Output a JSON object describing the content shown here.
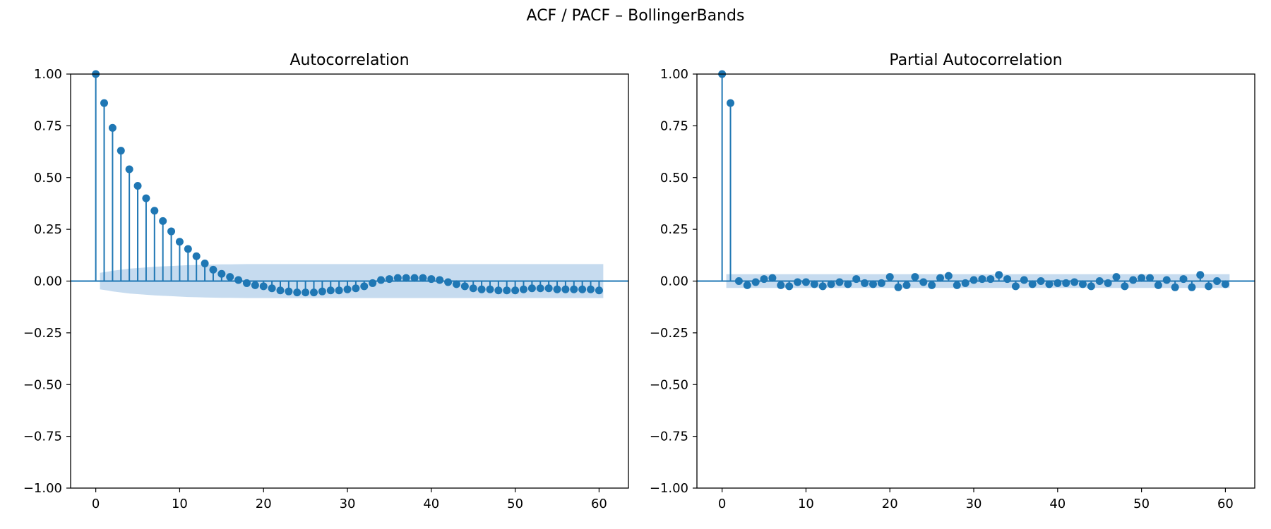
{
  "figure": {
    "suptitle": "ACF / PACF – BollingerBands"
  },
  "colors": {
    "series": "#1f77b4",
    "band": "#c6dbef",
    "axis": "#000000"
  },
  "chart_data": [
    {
      "type": "stem",
      "title": "Autocorrelation",
      "xlabel": "",
      "ylabel": "",
      "xlim": [
        -3,
        63.5
      ],
      "ylim": [
        -1,
        1
      ],
      "xticks": [
        0,
        10,
        20,
        30,
        40,
        50,
        60
      ],
      "xtick_labels": [
        "0",
        "10",
        "20",
        "30",
        "40",
        "50",
        "60"
      ],
      "yticks": [
        1.0,
        0.75,
        0.5,
        0.25,
        0.0,
        -0.25,
        -0.5,
        -0.75,
        -1.0
      ],
      "ytick_labels": [
        "1.00",
        "0.75",
        "0.50",
        "0.25",
        "0.00",
        "−0.25",
        "−0.50",
        "−0.75",
        "−1.00"
      ],
      "lags": [
        0,
        1,
        2,
        3,
        4,
        5,
        6,
        7,
        8,
        9,
        10,
        11,
        12,
        13,
        14,
        15,
        16,
        17,
        18,
        19,
        20,
        21,
        22,
        23,
        24,
        25,
        26,
        27,
        28,
        29,
        30,
        31,
        32,
        33,
        34,
        35,
        36,
        37,
        38,
        39,
        40,
        41,
        42,
        43,
        44,
        45,
        46,
        47,
        48,
        49,
        50,
        51,
        52,
        53,
        54,
        55,
        56,
        57,
        58,
        59,
        60
      ],
      "values": [
        1.0,
        0.86,
        0.74,
        0.63,
        0.54,
        0.46,
        0.4,
        0.34,
        0.29,
        0.24,
        0.19,
        0.155,
        0.12,
        0.085,
        0.055,
        0.035,
        0.02,
        0.005,
        -0.01,
        -0.02,
        -0.025,
        -0.035,
        -0.045,
        -0.05,
        -0.055,
        -0.055,
        -0.055,
        -0.05,
        -0.045,
        -0.045,
        -0.04,
        -0.035,
        -0.025,
        -0.01,
        0.005,
        0.01,
        0.015,
        0.015,
        0.015,
        0.015,
        0.01,
        0.005,
        -0.005,
        -0.015,
        -0.025,
        -0.035,
        -0.04,
        -0.04,
        -0.045,
        -0.045,
        -0.045,
        -0.04,
        -0.035,
        -0.035,
        -0.035,
        -0.04,
        -0.04,
        -0.04,
        -0.04,
        -0.04,
        -0.045
      ],
      "band_lags": [
        0.5,
        1,
        1.5,
        2,
        3,
        4,
        5,
        6,
        7,
        8,
        9,
        10,
        11,
        12,
        13,
        14,
        15,
        16,
        18,
        20,
        22,
        25,
        30,
        35,
        40,
        45,
        50,
        55,
        60,
        60.5
      ],
      "band_upper": [
        0.04,
        0.043,
        0.046,
        0.05,
        0.055,
        0.06,
        0.063,
        0.066,
        0.069,
        0.071,
        0.073,
        0.075,
        0.077,
        0.078,
        0.079,
        0.08,
        0.081,
        0.081,
        0.082,
        0.082,
        0.082,
        0.082,
        0.082,
        0.082,
        0.082,
        0.082,
        0.082,
        0.082,
        0.082,
        0.082
      ]
    },
    {
      "type": "stem",
      "title": "Partial Autocorrelation",
      "xlabel": "",
      "ylabel": "",
      "xlim": [
        -3,
        63.5
      ],
      "ylim": [
        -1,
        1
      ],
      "xticks": [
        0,
        10,
        20,
        30,
        40,
        50,
        60
      ],
      "xtick_labels": [
        "0",
        "10",
        "20",
        "30",
        "40",
        "50",
        "60"
      ],
      "yticks": [
        1.0,
        0.75,
        0.5,
        0.25,
        0.0,
        -0.25,
        -0.5,
        -0.75,
        -1.0
      ],
      "ytick_labels": [
        "1.00",
        "0.75",
        "0.50",
        "0.25",
        "0.00",
        "−0.25",
        "−0.50",
        "−0.75",
        "−1.00"
      ],
      "lags": [
        0,
        1,
        2,
        3,
        4,
        5,
        6,
        7,
        8,
        9,
        10,
        11,
        12,
        13,
        14,
        15,
        16,
        17,
        18,
        19,
        20,
        21,
        22,
        23,
        24,
        25,
        26,
        27,
        28,
        29,
        30,
        31,
        32,
        33,
        34,
        35,
        36,
        37,
        38,
        39,
        40,
        41,
        42,
        43,
        44,
        45,
        46,
        47,
        48,
        49,
        50,
        51,
        52,
        53,
        54,
        55,
        56,
        57,
        58,
        59,
        60
      ],
      "values": [
        1.0,
        0.86,
        0.0,
        -0.02,
        -0.005,
        0.01,
        0.015,
        -0.02,
        -0.025,
        -0.005,
        -0.005,
        -0.015,
        -0.025,
        -0.015,
        -0.005,
        -0.015,
        0.01,
        -0.01,
        -0.015,
        -0.01,
        0.02,
        -0.03,
        -0.02,
        0.02,
        -0.005,
        -0.02,
        0.015,
        0.025,
        -0.02,
        -0.01,
        0.005,
        0.01,
        0.01,
        0.03,
        0.01,
        -0.025,
        0.005,
        -0.015,
        0.0,
        -0.015,
        -0.01,
        -0.01,
        -0.005,
        -0.015,
        -0.025,
        0.0,
        -0.01,
        0.02,
        -0.025,
        0.005,
        0.015,
        0.015,
        -0.02,
        0.005,
        -0.03,
        0.01,
        -0.03,
        0.03,
        -0.025,
        0.0,
        -0.015
      ],
      "band_lags": [
        0.5,
        60.5
      ],
      "band_upper": [
        0.033,
        0.033
      ]
    }
  ]
}
